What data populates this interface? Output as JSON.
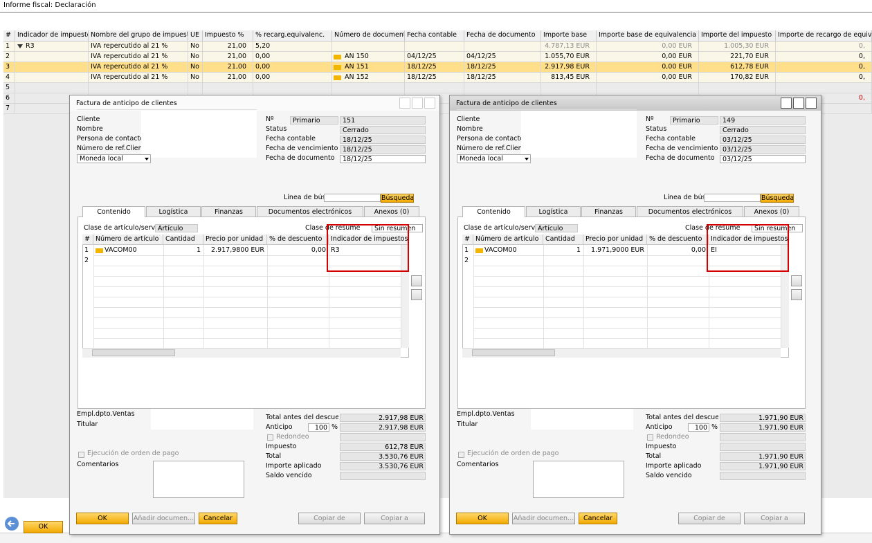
{
  "window": {
    "title": "Informe fiscal: Declaración",
    "ok_button": "OK"
  },
  "table": {
    "headers": [
      "#",
      "Indicador de impuestos",
      "Nombre del grupo de impuestos",
      "UE",
      "Impuesto %",
      "% recarg.equivalenc.",
      "Número de documento",
      "Fecha contable",
      "Fecha de documento",
      "Importe base",
      "Importe base de equivalencia",
      "Importe del impuesto",
      "Importe de recargo de equivalen"
    ],
    "rows": [
      [
        "1",
        "R3",
        "IVA repercutido al 21 %",
        "No",
        "21,00",
        "5,20",
        null,
        null,
        null,
        "4.787,13 EUR",
        "0,00 EUR",
        "1.005,30 EUR",
        "0,"
      ],
      [
        "2",
        null,
        "IVA repercutido al 21 %",
        "No",
        "21,00",
        "0,00",
        "AN 150",
        "04/12/25",
        "04/12/25",
        "1.055,70 EUR",
        "0,00 EUR",
        "221,70 EUR",
        "0,"
      ],
      [
        "3",
        null,
        "IVA repercutido al 21 %",
        "No",
        "21,00",
        "0,00",
        "AN 151",
        "18/12/25",
        "18/12/25",
        "2.917,98 EUR",
        "0,00 EUR",
        "612,78 EUR",
        "0,"
      ],
      [
        "4",
        null,
        "IVA repercutido al 21 %",
        "No",
        "21,00",
        "0,00",
        "AN 152",
        "18/12/25",
        "18/12/25",
        "813,45 EUR",
        "0,00 EUR",
        "170,82 EUR",
        "0,"
      ],
      [
        "5",
        null,
        null,
        null,
        null,
        null,
        null,
        null,
        null,
        null,
        null,
        null,
        null
      ],
      [
        "6",
        null,
        null,
        null,
        null,
        null,
        null,
        null,
        null,
        null,
        null,
        null,
        "0,"
      ],
      [
        "7",
        null,
        null,
        null,
        null,
        null,
        null,
        null,
        null,
        null,
        null,
        null,
        null
      ]
    ]
  },
  "dialogs": [
    {
      "title": "Factura de anticipo de clientes",
      "header_left": [
        "Cliente",
        "Nombre",
        "Persona de contacto",
        "Número de ref.Cliente"
      ],
      "currency": "Moneda local",
      "series": "Primario",
      "header_right": [
        {
          "label": "Nº",
          "value": "151"
        },
        {
          "label": "Status",
          "value": "Cerrado"
        },
        {
          "label": "Fecha contable",
          "value": "18/12/25"
        },
        {
          "label": "Fecha de vencimiento",
          "value": "18/12/25"
        },
        {
          "label": "Fecha de documento",
          "value": "18/12/25"
        }
      ],
      "search_label": "Línea de búsq",
      "search_button": "Búsqueda",
      "tabs": [
        "Contenido",
        "Logística",
        "Finanzas",
        "Documentos electrónicos",
        "Anexos (0)"
      ],
      "item_type_label": "Clase de artículo/servicio",
      "item_type": "Artículo",
      "summary_label": "Clase de resumen",
      "summary": "Sin resumen",
      "grid": {
        "headers": [
          "#",
          "Número de artículo",
          "Cantidad",
          "Precio por unidad",
          "% de descuento",
          "Indicador de impuestos"
        ],
        "rows": [
          [
            "1",
            "VACOM00",
            "1",
            "2.917,9800 EUR",
            "0,00",
            "R3"
          ],
          [
            "2"
          ]
        ]
      },
      "sales_employee_label": "Empl.dpto.Ventas",
      "owner_label": "Titular",
      "payment_run_label": "Ejecución de orden de pago",
      "remarks_label": "Comentarios",
      "totals": [
        {
          "label": "Total antes del descuento",
          "value": "2.917,98 EUR"
        },
        {
          "label": "Anticipo",
          "percent": "100",
          "percent_sign": "%",
          "value": "2.917,98 EUR"
        },
        {
          "label": "Redondeo"
        },
        {
          "label": "Impuesto",
          "value": "612,78 EUR"
        },
        {
          "label": "Total",
          "value": "3.530,76 EUR"
        },
        {
          "label": "Importe aplicado",
          "value": "3.530,76 EUR"
        },
        {
          "label": "Saldo vencido"
        }
      ],
      "buttons": [
        "OK",
        "Añadir documen...",
        "Cancelar",
        "Copiar de",
        "Copiar a"
      ]
    },
    {
      "title": "Factura de anticipo de clientes",
      "header_left": [
        "Cliente",
        "Nombre",
        "Persona de contacto",
        "Número de ref.Cliente"
      ],
      "currency": "Moneda local",
      "series": "Primario",
      "header_right": [
        {
          "label": "Nº",
          "value": "149"
        },
        {
          "label": "Status",
          "value": "Cerrado"
        },
        {
          "label": "Fecha contable",
          "value": "03/12/25"
        },
        {
          "label": "Fecha de vencimiento",
          "value": "03/12/25"
        },
        {
          "label": "Fecha de documento",
          "value": "03/12/25"
        }
      ],
      "search_label": "Línea de búsq",
      "search_button": "Búsqueda",
      "tabs": [
        "Contenido",
        "Logística",
        "Finanzas",
        "Documentos electrónicos",
        "Anexos (0)"
      ],
      "item_type_label": "Clase de artículo/servicio",
      "item_type": "Artículo",
      "summary_label": "Clase de resumen",
      "summary": "Sin resumen",
      "grid": {
        "headers": [
          "#",
          "Número de artículo",
          "Cantidad",
          "Precio por unidad",
          "% de descuento",
          "Indicador de impuestos"
        ],
        "rows": [
          [
            "1",
            "VACOM00",
            "1",
            "1.971,9000 EUR",
            "0,00",
            "EI"
          ],
          [
            "2"
          ]
        ]
      },
      "sales_employee_label": "Empl.dpto.Ventas",
      "owner_label": "Titular",
      "payment_run_label": "Ejecución de orden de pago",
      "remarks_label": "Comentarios",
      "totals": [
        {
          "label": "Total antes del descuento",
          "value": "1.971,90 EUR"
        },
        {
          "label": "Anticipo",
          "percent": "100",
          "percent_sign": "%",
          "value": "1.971,90 EUR"
        },
        {
          "label": "Redondeo"
        },
        {
          "label": "Impuesto"
        },
        {
          "label": "Total",
          "value": "1.971,90 EUR"
        },
        {
          "label": "Importe aplicado",
          "value": "1.971,90 EUR"
        },
        {
          "label": "Saldo vencido"
        }
      ],
      "buttons": [
        "OK",
        "Añadir documen...",
        "Cancelar",
        "Copiar de",
        "Copiar a"
      ]
    }
  ]
}
